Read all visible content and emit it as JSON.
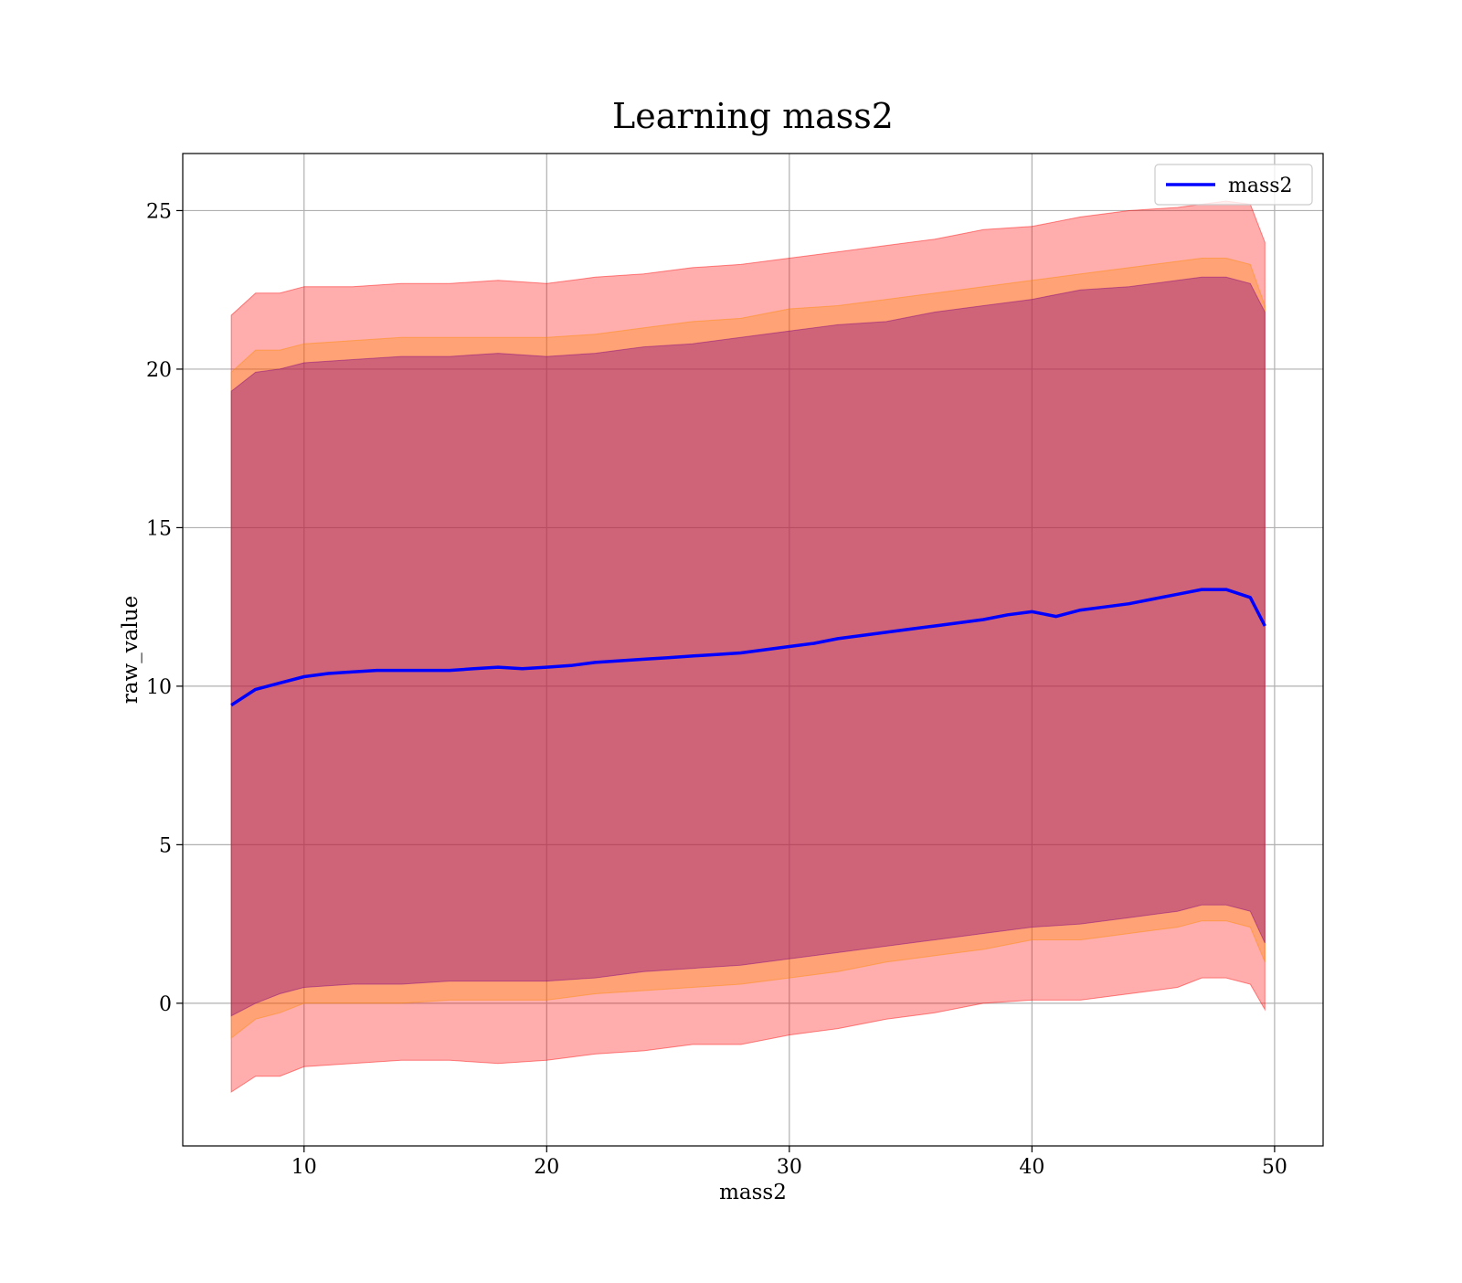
{
  "chart_data": {
    "type": "line",
    "title": "Learning mass2",
    "xlabel": "mass2",
    "ylabel": "raw_value",
    "xlim": [
      5,
      52
    ],
    "ylim": [
      -4.5,
      26.8
    ],
    "xticks": [
      10,
      20,
      30,
      40,
      50
    ],
    "yticks": [
      0,
      5,
      10,
      15,
      20,
      25
    ],
    "grid": true,
    "legend": {
      "placement": "top-right",
      "entries": [
        "mass2"
      ]
    },
    "colors": {
      "line": "#0000ff",
      "band_outer": "#ff0000",
      "band_middle": "#ff8c00",
      "band_inner": "#800080"
    },
    "series": [
      {
        "name": "mass2",
        "x": [
          7,
          8,
          9,
          10,
          11,
          12,
          13,
          14,
          15,
          16,
          17,
          18,
          19,
          20,
          21,
          22,
          23,
          24,
          25,
          26,
          27,
          28,
          29,
          30,
          31,
          32,
          33,
          34,
          35,
          36,
          37,
          38,
          39,
          40,
          41,
          42,
          43,
          44,
          45,
          46,
          47,
          48,
          49,
          49.6
        ],
        "y": [
          9.4,
          9.9,
          10.1,
          10.3,
          10.4,
          10.45,
          10.5,
          10.5,
          10.5,
          10.5,
          10.55,
          10.6,
          10.55,
          10.6,
          10.65,
          10.75,
          10.8,
          10.85,
          10.9,
          10.95,
          11.0,
          11.05,
          11.15,
          11.25,
          11.35,
          11.5,
          11.6,
          11.7,
          11.8,
          11.9,
          12.0,
          12.1,
          12.25,
          12.35,
          12.2,
          12.4,
          12.5,
          12.6,
          12.75,
          12.9,
          13.05,
          13.05,
          12.8,
          11.9
        ]
      }
    ],
    "bands": [
      {
        "name": "outer",
        "x": [
          7,
          8,
          9,
          10,
          12,
          14,
          16,
          18,
          20,
          22,
          24,
          26,
          28,
          30,
          32,
          34,
          36,
          38,
          40,
          42,
          44,
          46,
          47,
          48,
          49,
          49.6
        ],
        "upper": [
          21.7,
          22.4,
          22.4,
          22.6,
          22.6,
          22.7,
          22.7,
          22.8,
          22.7,
          22.9,
          23.0,
          23.2,
          23.3,
          23.5,
          23.7,
          23.9,
          24.1,
          24.4,
          24.5,
          24.8,
          25.0,
          25.1,
          25.2,
          25.3,
          25.2,
          24.0
        ],
        "lower": [
          -2.8,
          -2.3,
          -2.3,
          -2.0,
          -1.9,
          -1.8,
          -1.8,
          -1.9,
          -1.8,
          -1.6,
          -1.5,
          -1.3,
          -1.3,
          -1.0,
          -0.8,
          -0.5,
          -0.3,
          0.0,
          0.1,
          0.1,
          0.3,
          0.5,
          0.8,
          0.8,
          0.6,
          -0.2
        ]
      },
      {
        "name": "middle",
        "x": [
          7,
          8,
          9,
          10,
          12,
          14,
          16,
          18,
          20,
          22,
          24,
          26,
          28,
          30,
          32,
          34,
          36,
          38,
          40,
          42,
          44,
          46,
          47,
          48,
          49,
          49.6
        ],
        "upper": [
          19.9,
          20.6,
          20.6,
          20.8,
          20.9,
          21.0,
          21.0,
          21.0,
          21.0,
          21.1,
          21.3,
          21.5,
          21.6,
          21.9,
          22.0,
          22.2,
          22.4,
          22.6,
          22.8,
          23.0,
          23.2,
          23.4,
          23.5,
          23.5,
          23.3,
          22.0
        ],
        "lower": [
          -1.1,
          -0.5,
          -0.3,
          0.0,
          0.0,
          0.0,
          0.1,
          0.1,
          0.1,
          0.3,
          0.4,
          0.5,
          0.6,
          0.8,
          1.0,
          1.3,
          1.5,
          1.7,
          2.0,
          2.0,
          2.2,
          2.4,
          2.6,
          2.6,
          2.4,
          1.3
        ]
      },
      {
        "name": "inner",
        "x": [
          7,
          8,
          9,
          10,
          12,
          14,
          16,
          18,
          20,
          22,
          24,
          26,
          28,
          30,
          32,
          34,
          36,
          38,
          40,
          42,
          44,
          46,
          47,
          48,
          49,
          49.6
        ],
        "upper": [
          19.3,
          19.9,
          20.0,
          20.2,
          20.3,
          20.4,
          20.4,
          20.5,
          20.4,
          20.5,
          20.7,
          20.8,
          21.0,
          21.2,
          21.4,
          21.5,
          21.8,
          22.0,
          22.2,
          22.5,
          22.6,
          22.8,
          22.9,
          22.9,
          22.7,
          21.8
        ],
        "lower": [
          -0.4,
          0.0,
          0.3,
          0.5,
          0.6,
          0.6,
          0.7,
          0.7,
          0.7,
          0.8,
          1.0,
          1.1,
          1.2,
          1.4,
          1.6,
          1.8,
          2.0,
          2.2,
          2.4,
          2.5,
          2.7,
          2.9,
          3.1,
          3.1,
          2.9,
          1.9
        ]
      }
    ]
  }
}
